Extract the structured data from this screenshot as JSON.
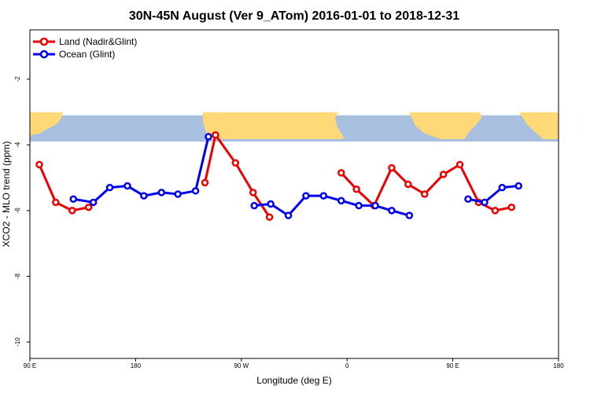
{
  "chart_data": {
    "type": "line",
    "title": "30N-45N August (Ver 9_ATom)   2016-01-01 to 2018-12-31",
    "xlabel": "Longitude (deg E)",
    "ylabel": "XCO2 - MLO trend (ppm)",
    "xlim": [
      90,
      450
    ],
    "ylim": [
      -10.5,
      -0.5
    ],
    "x_ticks": [
      {
        "value": 90,
        "label": "90 E"
      },
      {
        "value": 180,
        "label": "180"
      },
      {
        "value": 270,
        "label": "90 W"
      },
      {
        "value": 360,
        "label": "0"
      },
      {
        "value": 450,
        "label": "90 E"
      },
      {
        "value": 540,
        "label": "180"
      }
    ],
    "x_tick_range": [
      90,
      540
    ],
    "y_ticks": [
      -2,
      -4,
      -6,
      -8,
      -10
    ],
    "map_strip": {
      "lat_range": [
        -3.1,
        -3.9
      ],
      "ocean_color": "#A8BFE0",
      "land_color": "#FFD978"
    },
    "legend": {
      "position": "top-left"
    },
    "series": [
      {
        "name": "Land (Nadir&Glint)",
        "color": "#EE0000",
        "segments": [
          [
            [
              98,
              -4.6
            ],
            [
              112,
              -5.75
            ],
            [
              126,
              -6.0
            ],
            [
              140,
              -5.9
            ]
          ],
          [
            [
              239,
              -5.15
            ],
            [
              248,
              -3.7
            ],
            [
              265,
              -4.55
            ],
            [
              280,
              -5.45
            ],
            [
              294,
              -6.2
            ]
          ],
          [
            [
              355,
              -4.85
            ],
            [
              368,
              -5.35
            ],
            [
              383,
              -5.85
            ],
            [
              398,
              -4.7
            ],
            [
              412,
              -5.2
            ],
            [
              426,
              -5.5
            ],
            [
              442,
              -4.9
            ],
            [
              456,
              -4.6
            ],
            [
              472,
              -5.75
            ],
            [
              486,
              -6.0
            ],
            [
              500,
              -5.9
            ]
          ]
        ]
      },
      {
        "name": "Ocean (Glint)",
        "color": "#0000EE",
        "segments": [
          [
            [
              127,
              -5.65
            ],
            [
              144,
              -5.75
            ],
            [
              158,
              -5.3
            ],
            [
              173,
              -5.25
            ],
            [
              187,
              -5.55
            ],
            [
              202,
              -5.45
            ],
            [
              216,
              -5.5
            ],
            [
              231,
              -5.4
            ],
            [
              242,
              -3.75
            ]
          ],
          [
            [
              281,
              -5.85
            ],
            [
              295,
              -5.8
            ],
            [
              310,
              -6.15
            ],
            [
              325,
              -5.55
            ],
            [
              340,
              -5.55
            ],
            [
              355,
              -5.7
            ],
            [
              370,
              -5.85
            ],
            [
              384,
              -5.85
            ],
            [
              398,
              -6.0
            ],
            [
              413,
              -6.15
            ]
          ],
          [
            [
              463,
              -5.65
            ],
            [
              477,
              -5.75
            ],
            [
              492,
              -5.3
            ],
            [
              506,
              -5.25
            ]
          ]
        ]
      }
    ]
  }
}
